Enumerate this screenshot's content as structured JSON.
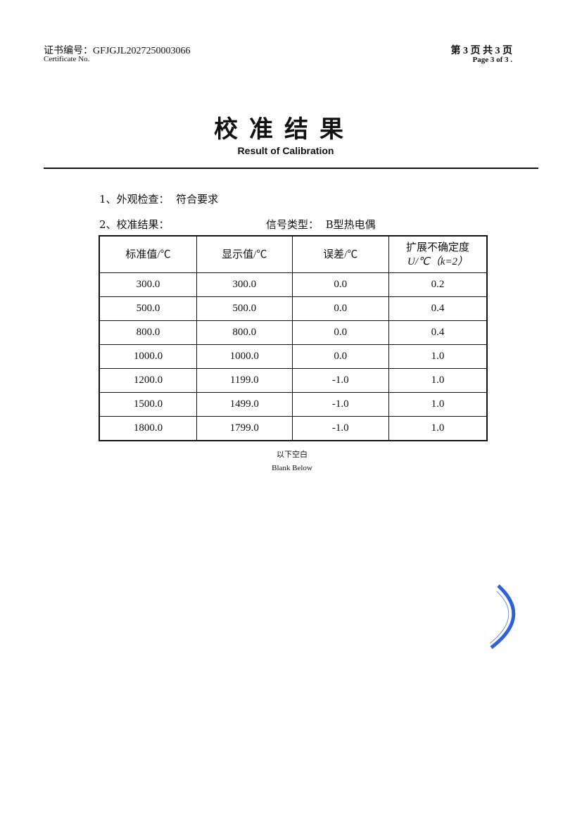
{
  "header": {
    "certificate_label": "证书编号：",
    "certificate_number": "GFJGJL2027250003066",
    "certificate_label_en": "Certificate No.",
    "page_cn": "第 3 页  共 3 页",
    "page_en": "Page  3   of  3    ."
  },
  "title": "校准结果",
  "subtitle": "Result of Calibration",
  "section1": {
    "label": "1、外观检查：",
    "value": "符合要求"
  },
  "section2": {
    "label": "2、校准结果：",
    "signal_label": "信号类型：",
    "signal_value": "B型热电偶"
  },
  "table": {
    "headers": [
      "标准值/℃",
      "显示值/℃",
      "误差/℃",
      "扩展不确定度",
      "U/℃（k=2）"
    ],
    "rows": [
      [
        "300.0",
        "300.0",
        "0.0",
        "0.2"
      ],
      [
        "500.0",
        "500.0",
        "0.0",
        "0.4"
      ],
      [
        "800.0",
        "800.0",
        "0.0",
        "0.4"
      ],
      [
        "1000.0",
        "1000.0",
        "0.0",
        "1.0"
      ],
      [
        "1200.0",
        "1199.0",
        "-1.0",
        "1.0"
      ],
      [
        "1500.0",
        "1499.0",
        "-1.0",
        "1.0"
      ],
      [
        "1800.0",
        "1799.0",
        "-1.0",
        "1.0"
      ]
    ]
  },
  "blank_cn": "以下空白",
  "blank_en": "Blank Below",
  "stamp_color": "#2f62d6"
}
